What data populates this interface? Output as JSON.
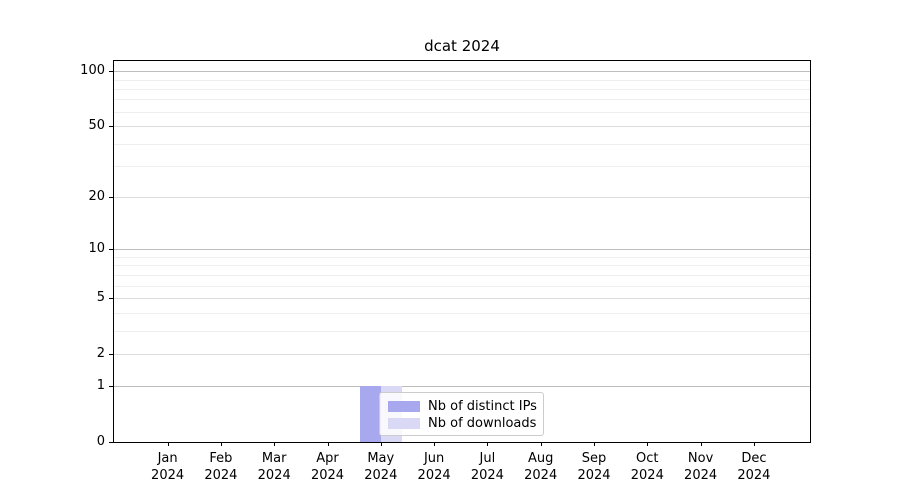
{
  "chart_data": {
    "type": "bar",
    "title": "dcat 2024",
    "x_tick_labels": [
      {
        "month": "Jan",
        "year": "2024"
      },
      {
        "month": "Feb",
        "year": "2024"
      },
      {
        "month": "Mar",
        "year": "2024"
      },
      {
        "month": "Apr",
        "year": "2024"
      },
      {
        "month": "May",
        "year": "2024"
      },
      {
        "month": "Jun",
        "year": "2024"
      },
      {
        "month": "Jul",
        "year": "2024"
      },
      {
        "month": "Aug",
        "year": "2024"
      },
      {
        "month": "Sep",
        "year": "2024"
      },
      {
        "month": "Oct",
        "year": "2024"
      },
      {
        "month": "Nov",
        "year": "2024"
      },
      {
        "month": "Dec",
        "year": "2024"
      }
    ],
    "series": [
      {
        "name": "Nb of distinct IPs",
        "color": "#a8a8ee",
        "values": [
          0,
          0,
          0,
          0,
          1,
          0,
          0,
          0,
          0,
          0,
          0,
          0
        ]
      },
      {
        "name": "Nb of downloads",
        "color": "#d9d9f6",
        "values": [
          0,
          0,
          0,
          0,
          1,
          0,
          0,
          0,
          0,
          0,
          0,
          0
        ]
      }
    ],
    "yscale": "log1p",
    "ylim": [
      0,
      113.6
    ],
    "yticks_labeled": [
      0,
      1,
      2,
      5,
      10,
      20,
      50,
      100
    ],
    "yticks_decade": [
      1,
      10,
      100
    ],
    "yticks_minor": [
      3,
      4,
      6,
      7,
      8,
      9,
      30,
      40,
      60,
      70,
      80,
      90
    ],
    "grid": "both",
    "legend": {
      "entries": [
        "Nb of distinct IPs",
        "Nb of downloads"
      ],
      "position": "inside-bottom-center"
    },
    "colors": {
      "distinct_ips": "#a8a8ee",
      "downloads": "#d9d9f6",
      "text": "#000000"
    }
  }
}
